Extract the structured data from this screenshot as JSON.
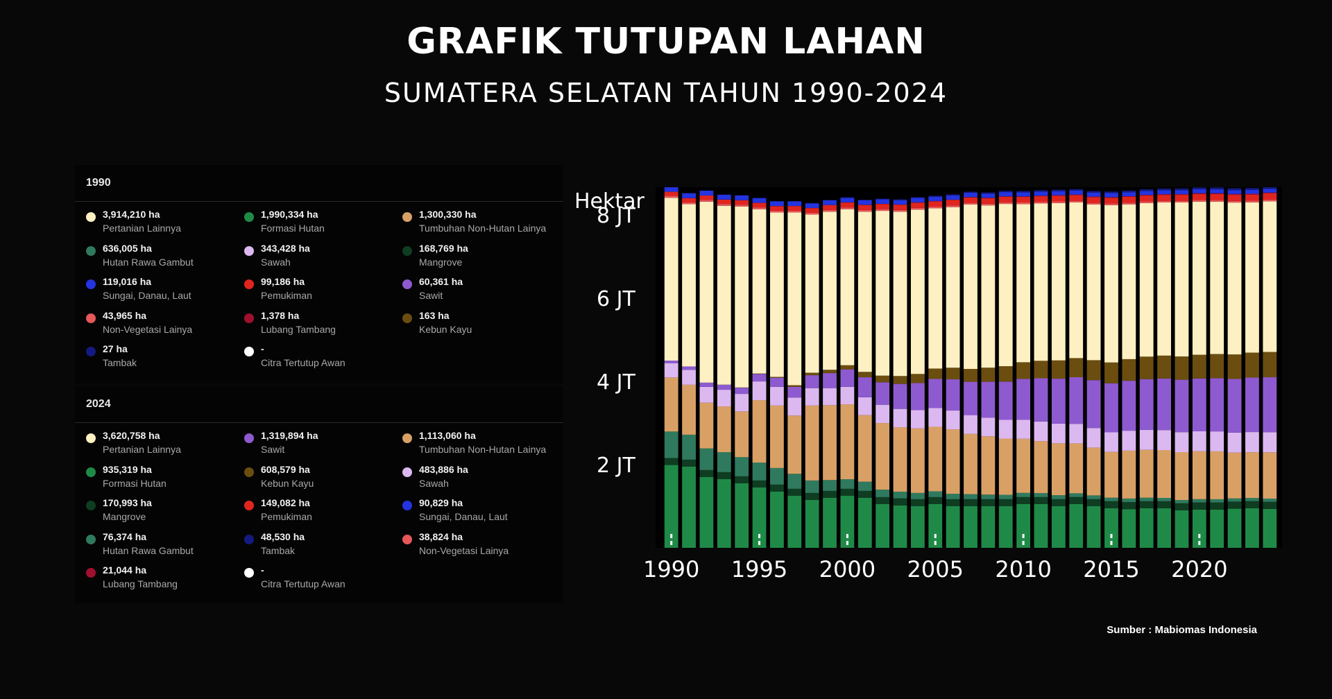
{
  "header": {
    "title": "GRAFIK TUTUPAN LAHAN",
    "subtitle": "SUMATERA SELATAN TAHUN 1990-2024"
  },
  "legend_1990": {
    "year": "1990",
    "items": [
      {
        "value": "3,914,210 ha",
        "label": "Pertanian Lainnya",
        "color": "#fdf0c2"
      },
      {
        "value": "1,990,334 ha",
        "label": "Formasi Hutan",
        "color": "#1f8a47"
      },
      {
        "value": "1,300,330 ha",
        "label": "Tumbuhan Non-Hutan Lainya",
        "color": "#d9a066"
      },
      {
        "value": "636,005 ha",
        "label": "Hutan Rawa Gambut",
        "color": "#2f7a5e"
      },
      {
        "value": "343,428 ha",
        "label": "Sawah",
        "color": "#dcb8f0"
      },
      {
        "value": "168,769 ha",
        "label": "Mangrove",
        "color": "#0f3d22"
      },
      {
        "value": "119,016 ha",
        "label": "Sungai, Danau, Laut",
        "color": "#2434e0"
      },
      {
        "value": "99,186 ha",
        "label": "Pemukiman",
        "color": "#e0251f"
      },
      {
        "value": "60,361 ha",
        "label": "Sawit",
        "color": "#8e5ad0"
      },
      {
        "value": "43,965 ha",
        "label": "Non-Vegetasi Lainya",
        "color": "#e8575a"
      },
      {
        "value": "1,378 ha",
        "label": "Lubang Tambang",
        "color": "#a0102e"
      },
      {
        "value": "163 ha",
        "label": "Kebun Kayu",
        "color": "#6b4d10"
      },
      {
        "value": "27 ha",
        "label": "Tambak",
        "color": "#141a80"
      },
      {
        "value": "-",
        "label": "Citra Tertutup Awan",
        "color": "#ffffff"
      }
    ]
  },
  "legend_2024": {
    "year": "2024",
    "items": [
      {
        "value": "3,620,758 ha",
        "label": "Pertanian Lainnya",
        "color": "#fdf0c2"
      },
      {
        "value": "1,319,894 ha",
        "label": "Sawit",
        "color": "#8e5ad0"
      },
      {
        "value": "1,113,060 ha",
        "label": "Tumbuhan Non-Hutan Lainya",
        "color": "#d9a066"
      },
      {
        "value": "935,319 ha",
        "label": "Formasi Hutan",
        "color": "#1f8a47"
      },
      {
        "value": "608,579 ha",
        "label": "Kebun Kayu",
        "color": "#6b4d10"
      },
      {
        "value": "483,886 ha",
        "label": "Sawah",
        "color": "#dcb8f0"
      },
      {
        "value": "170,993 ha",
        "label": "Mangrove",
        "color": "#0f3d22"
      },
      {
        "value": "149,082 ha",
        "label": "Pemukiman",
        "color": "#e0251f"
      },
      {
        "value": "90,829 ha",
        "label": "Sungai, Danau, Laut",
        "color": "#2434e0"
      },
      {
        "value": "76,374 ha",
        "label": "Hutan Rawa Gambut",
        "color": "#2f7a5e"
      },
      {
        "value": "48,530 ha",
        "label": "Tambak",
        "color": "#141a80"
      },
      {
        "value": "38,824 ha",
        "label": "Non-Vegetasi Lainya",
        "color": "#e8575a"
      },
      {
        "value": "21,044 ha",
        "label": "Lubang Tambang",
        "color": "#a0102e"
      },
      {
        "value": "-",
        "label": "Citra Tertutup Awan",
        "color": "#ffffff"
      }
    ]
  },
  "source": "Sumber : Mabiomas Indonesia",
  "chart_data": {
    "type": "bar",
    "stacked": true,
    "ylabel": "Hektar",
    "y_ticks": [
      {
        "value": 2000000,
        "label": "2 JT"
      },
      {
        "value": 4000000,
        "label": "4 JT"
      },
      {
        "value": 6000000,
        "label": "6 JT"
      },
      {
        "value": 8000000,
        "label": "8 JT"
      }
    ],
    "x_ticks": [
      "1990",
      "1995",
      "2000",
      "2005",
      "2010",
      "2015",
      "2020"
    ],
    "ylim": [
      0,
      8500000
    ],
    "grid": false,
    "categories": [
      "1990",
      "1991",
      "1992",
      "1993",
      "1994",
      "1995",
      "1996",
      "1997",
      "1998",
      "1999",
      "2000",
      "2001",
      "2002",
      "2003",
      "2004",
      "2005",
      "2006",
      "2007",
      "2008",
      "2009",
      "2010",
      "2011",
      "2012",
      "2013",
      "2014",
      "2015",
      "2016",
      "2017",
      "2018",
      "2019",
      "2020",
      "2021",
      "2022",
      "2023",
      "2024"
    ],
    "series": [
      {
        "name": "Formasi Hutan",
        "color": "#1f8a47",
        "values": [
          1990334,
          1950000,
          1700000,
          1650000,
          1550000,
          1450000,
          1350000,
          1250000,
          1150000,
          1200000,
          1250000,
          1200000,
          1050000,
          1020000,
          1000000,
          1050000,
          1000000,
          1000000,
          1000000,
          1000000,
          1050000,
          1050000,
          1000000,
          1050000,
          1000000,
          950000,
          930000,
          950000,
          950000,
          900000,
          920000,
          920000,
          940000,
          950000,
          935319
        ]
      },
      {
        "name": "Mangrove",
        "color": "#0f3d22",
        "values": [
          168769,
          168769,
          168769,
          168769,
          168769,
          168769,
          168769,
          168769,
          168769,
          168769,
          168769,
          168769,
          168769,
          169000,
          169000,
          169000,
          169000,
          170000,
          170000,
          170000,
          170000,
          170000,
          170000,
          170000,
          170000,
          170000,
          170000,
          170000,
          170000,
          170000,
          170000,
          170000,
          171000,
          171000,
          170993
        ]
      },
      {
        "name": "Hutan Rawa Gambut",
        "color": "#2f7a5e",
        "values": [
          636005,
          600000,
          520000,
          480000,
          460000,
          430000,
          400000,
          360000,
          300000,
          260000,
          230000,
          220000,
          180000,
          160000,
          150000,
          140000,
          130000,
          120000,
          110000,
          105000,
          100000,
          95000,
          95000,
          90000,
          90000,
          85000,
          85000,
          85000,
          80000,
          80000,
          80000,
          78000,
          77000,
          77000,
          76374
        ]
      },
      {
        "name": "Tumbuhan Non-Hutan Lainya",
        "color": "#d9a066",
        "values": [
          1300330,
          1200000,
          1100000,
          1100000,
          1100000,
          1500000,
          1500000,
          1400000,
          1800000,
          1800000,
          1800000,
          1600000,
          1600000,
          1550000,
          1550000,
          1550000,
          1550000,
          1450000,
          1400000,
          1350000,
          1300000,
          1250000,
          1250000,
          1200000,
          1150000,
          1100000,
          1150000,
          1150000,
          1150000,
          1150000,
          1150000,
          1150000,
          1100000,
          1100000,
          1113060
        ]
      },
      {
        "name": "Sawah",
        "color": "#dcb8f0",
        "values": [
          343428,
          360000,
          380000,
          400000,
          420000,
          450000,
          450000,
          430000,
          420000,
          410000,
          420000,
          430000,
          440000,
          440000,
          440000,
          450000,
          450000,
          450000,
          450000,
          450000,
          460000,
          470000,
          470000,
          470000,
          470000,
          470000,
          480000,
          480000,
          480000,
          480000,
          480000,
          480000,
          480000,
          484000,
          483886
        ]
      },
      {
        "name": "Sawit",
        "color": "#8e5ad0",
        "values": [
          60361,
          80000,
          100000,
          120000,
          150000,
          180000,
          220000,
          260000,
          310000,
          360000,
          420000,
          480000,
          540000,
          600000,
          650000,
          700000,
          750000,
          800000,
          860000,
          920000,
          980000,
          1040000,
          1080000,
          1120000,
          1150000,
          1180000,
          1200000,
          1220000,
          1240000,
          1260000,
          1270000,
          1280000,
          1290000,
          1310000,
          1319894
        ]
      },
      {
        "name": "Kebun Kayu",
        "color": "#6b4d10",
        "values": [
          163,
          500,
          1000,
          2000,
          5000,
          10000,
          20000,
          40000,
          60000,
          80000,
          100000,
          130000,
          160000,
          190000,
          220000,
          250000,
          280000,
          310000,
          340000,
          370000,
          400000,
          420000,
          440000,
          460000,
          480000,
          500000,
          520000,
          540000,
          550000,
          560000,
          570000,
          580000,
          590000,
          600000,
          608579
        ]
      },
      {
        "name": "Pertanian Lainnya",
        "color": "#fdf0c2",
        "values": [
          3914210,
          3900000,
          4350000,
          4300000,
          4350000,
          3950000,
          3950000,
          4150000,
          3800000,
          3800000,
          3750000,
          3850000,
          3960000,
          3950000,
          3950000,
          3850000,
          3860000,
          3950000,
          3900000,
          3900000,
          3800000,
          3780000,
          3780000,
          3740000,
          3740000,
          3780000,
          3720000,
          3690000,
          3680000,
          3700000,
          3680000,
          3660000,
          3650000,
          3610000,
          3620758
        ]
      },
      {
        "name": "Non-Vegetasi Lainya",
        "color": "#e8575a",
        "values": [
          43965,
          44000,
          44000,
          44000,
          43000,
          43000,
          43000,
          42000,
          42000,
          42000,
          42000,
          41000,
          41000,
          41000,
          41000,
          40000,
          40000,
          40000,
          40000,
          40000,
          40000,
          40000,
          40000,
          39000,
          39000,
          39000,
          39000,
          39000,
          39000,
          39000,
          39000,
          39000,
          39000,
          39000,
          38824
        ]
      },
      {
        "name": "Pemukiman",
        "color": "#e0251f",
        "values": [
          99186,
          100000,
          102000,
          104000,
          106000,
          108000,
          110000,
          112000,
          114000,
          116000,
          118000,
          120000,
          122000,
          124000,
          126000,
          128000,
          130000,
          131000,
          132000,
          133000,
          134000,
          135000,
          136000,
          137000,
          138000,
          139000,
          140000,
          141000,
          142000,
          143000,
          144000,
          145000,
          146000,
          147000,
          149082
        ]
      },
      {
        "name": "Lubang Tambang",
        "color": "#a0102e",
        "values": [
          1378,
          1500,
          1700,
          2000,
          2300,
          2600,
          3000,
          3400,
          3800,
          4200,
          4800,
          5400,
          6000,
          6800,
          7500,
          8200,
          9000,
          9800,
          10500,
          11200,
          12000,
          12800,
          13500,
          14200,
          15000,
          15800,
          16500,
          17200,
          17800,
          18400,
          19000,
          19600,
          20100,
          20600,
          21044
        ]
      },
      {
        "name": "Sungai, Danau, Laut",
        "color": "#2434e0",
        "values": [
          119016,
          118000,
          117000,
          116000,
          115000,
          114000,
          113000,
          112000,
          111000,
          110000,
          109000,
          108000,
          107000,
          106000,
          105000,
          104000,
          103000,
          102000,
          101000,
          100000,
          99000,
          98500,
          98000,
          97500,
          97000,
          96500,
          96000,
          95500,
          95000,
          94500,
          94000,
          93500,
          92500,
          91500,
          90829
        ]
      },
      {
        "name": "Tambak",
        "color": "#141a80",
        "values": [
          27,
          100,
          500,
          1000,
          2000,
          3000,
          4500,
          6000,
          8000,
          10000,
          12000,
          14000,
          16000,
          18000,
          20000,
          22000,
          24000,
          26000,
          28000,
          30000,
          32000,
          34000,
          35000,
          36000,
          37000,
          38000,
          39500,
          41000,
          42000,
          43000,
          44000,
          45000,
          46000,
          47500,
          48530
        ]
      }
    ]
  }
}
